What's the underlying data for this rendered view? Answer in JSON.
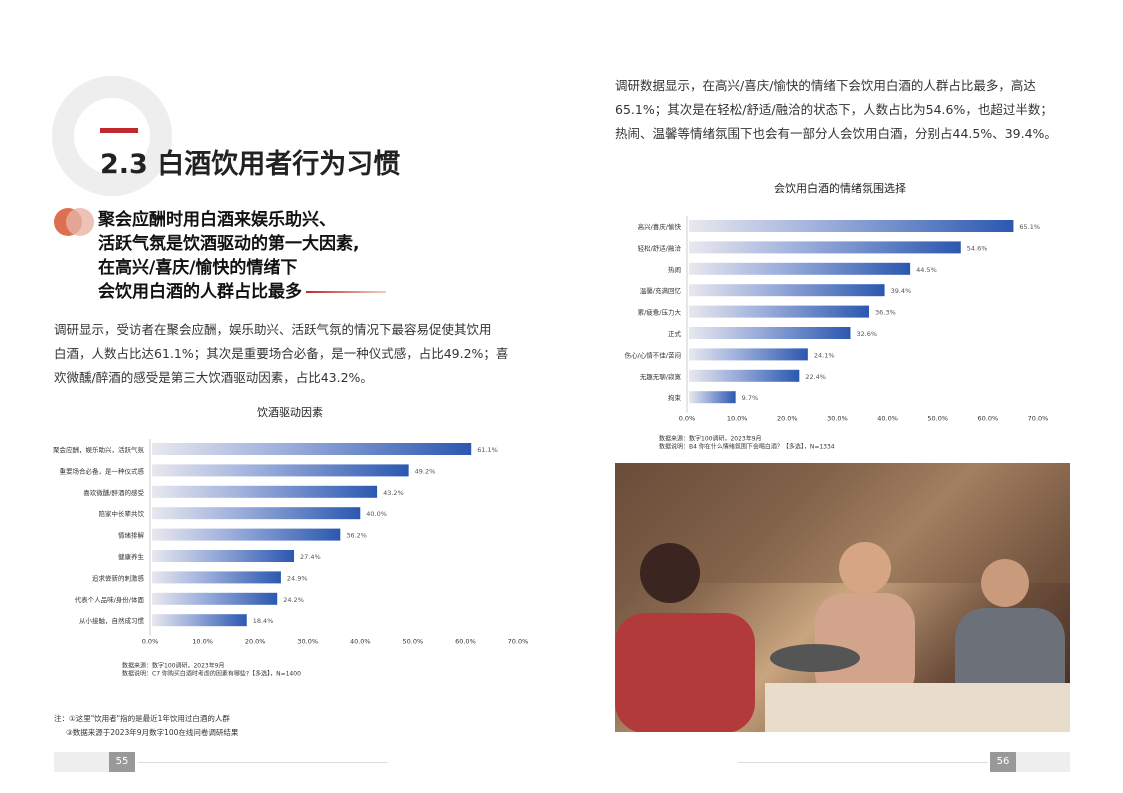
{
  "left_page": {
    "section_title": "2.3 白酒饮用者行为习惯",
    "headline": [
      "聚会应酬时用白酒来娱乐助兴、",
      "活跃气氛是饮酒驱动的第一大因素,",
      "在高兴/喜庆/愉快的情绪下",
      "会饮用白酒的人群占比最多"
    ],
    "paragraph": [
      "调研显示，受访者在聚会应酬，娱乐助兴、活跃气氛的情况下最容易促使其饮用",
      "白酒，人数占比达61.1%；其次是重要场合必备，是一种仪式感，占比49.2%；喜",
      "欢微醺/醉酒的感受是第三大饮酒驱动因素，占比43.2%。"
    ],
    "footnotes": [
      "注：①这里\"饮用者\"指的是最近1年饮用过白酒的人群",
      "③数据来源于2023年9月数字100在线问卷调研结果"
    ],
    "page_number": "55"
  },
  "right_page": {
    "paragraph": [
      "调研数据显示，在高兴/喜庆/愉快的情绪下会饮用白酒的人群占比最多，高达",
      "65.1%；其次是在轻松/舒适/融洽的状态下，人数占比为54.6%，也超过半数；",
      "热闹、温馨等情绪氛围下也会有一部分人会饮用白酒，分别占44.5%、39.4%。"
    ],
    "page_number": "56"
  },
  "colors": {
    "accent_red": "#c0282d",
    "bar_dark": "#2b58b0",
    "bar_light": "#e8e8ee"
  },
  "chart_data": [
    {
      "type": "bar",
      "orientation": "horizontal",
      "title": "饮酒驱动因素",
      "categories": [
        "聚会应酬，娱乐助兴，活跃气氛",
        "重要场合必备，是一种仪式感",
        "喜欢微醺/醉酒的感受",
        "陪家中长辈共饮",
        "情绪排解",
        "健康养生",
        "追求尝新的刺激感",
        "代表个人品味/身份/体面",
        "从小接触，自然成习惯"
      ],
      "values": [
        61.1,
        49.2,
        43.2,
        40.0,
        36.2,
        27.4,
        24.9,
        24.2,
        18.4
      ],
      "value_labels": [
        "61.1%",
        "49.2%",
        "43.2%",
        "40.0%",
        "36.2%",
        "27.4%",
        "24.9%",
        "24.2%",
        "18.4%"
      ],
      "xticks": [
        "0.0%",
        "10.0%",
        "20.0%",
        "30.0%",
        "40.0%",
        "50.0%",
        "60.0%",
        "70.0%"
      ],
      "xlim": [
        0,
        70
      ],
      "notes": [
        "数据来源：数字100调研，2023年9月",
        "数据说明：C7 你购买白酒时考虑的因素有哪些?【多选】，N=1400"
      ]
    },
    {
      "type": "bar",
      "orientation": "horizontal",
      "title": "会饮用白酒的情绪氛围选择",
      "categories": [
        "高兴/喜庆/愉快",
        "轻松/舒适/融洽",
        "热闹",
        "温馨/充满回忆",
        "累/疲惫/压力大",
        "正式",
        "伤心/心情不佳/苦闷",
        "无趣无聊/寂寞",
        "拘束"
      ],
      "values": [
        65.1,
        54.6,
        44.5,
        39.4,
        36.3,
        32.6,
        24.1,
        22.4,
        9.7
      ],
      "value_labels": [
        "65.1%",
        "54.6%",
        "44.5%",
        "39.4%",
        "36.3%",
        "32.6%",
        "24.1%",
        "22.4%",
        "9.7%"
      ],
      "xticks": [
        "0.0%",
        "10.0%",
        "20.0%",
        "30.0%",
        "40.0%",
        "50.0%",
        "60.0%",
        "70.0%"
      ],
      "xlim": [
        0,
        70
      ],
      "notes": [
        "数据来源：数字100调研，2023年9月",
        "数据说明：B4 你在什么情绪氛围下会喝白酒？【多选】，N=1334"
      ]
    }
  ]
}
